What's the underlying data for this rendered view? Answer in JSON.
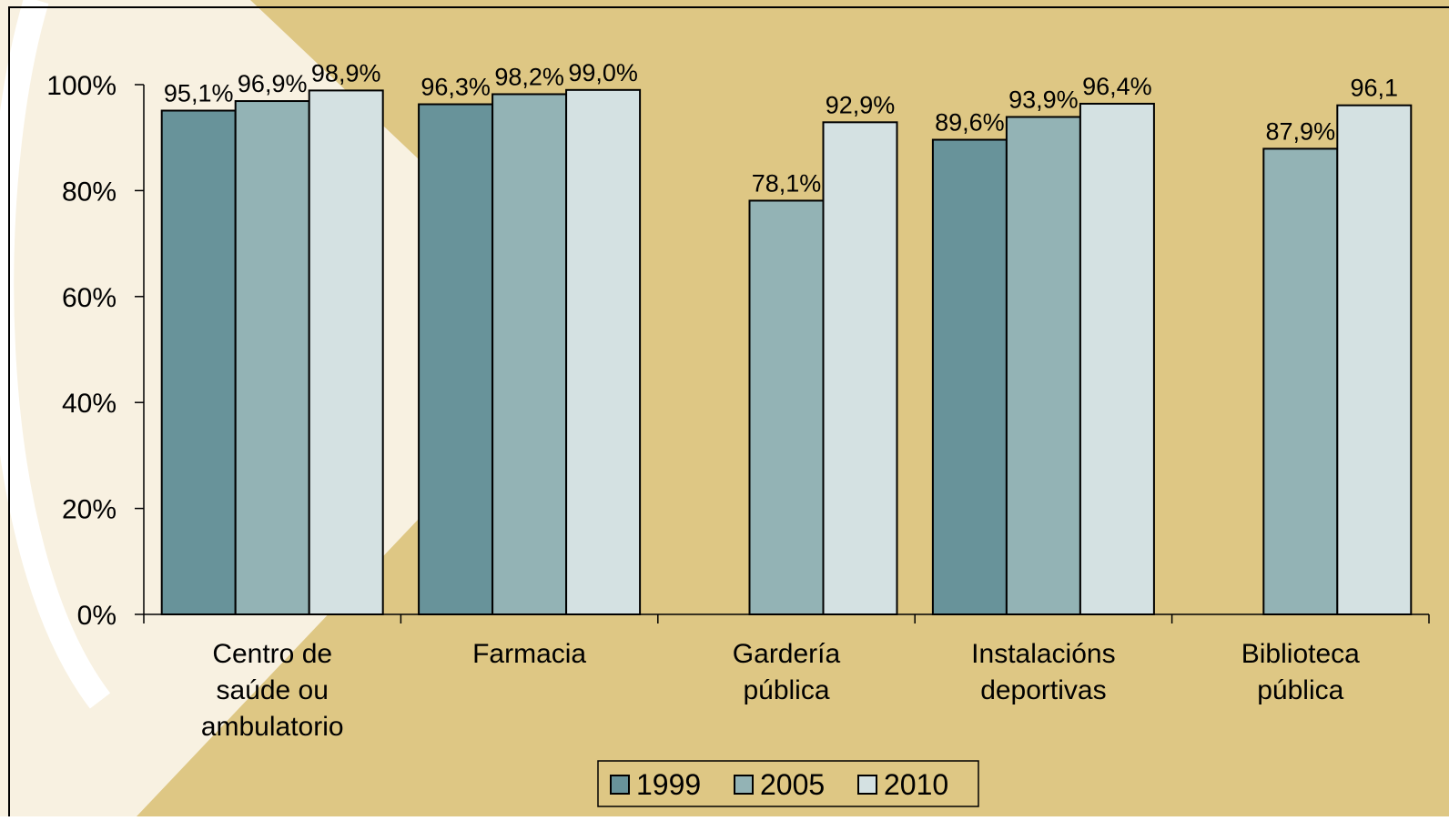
{
  "chart_data": {
    "type": "bar",
    "categories": [
      [
        "Centro de",
        "saúde ou",
        "ambulatorio"
      ],
      [
        "Farmacia"
      ],
      [
        "Gardería",
        "pública"
      ],
      [
        "Instalacións",
        "deportivas"
      ],
      [
        "Biblioteca",
        "pública"
      ]
    ],
    "series": [
      {
        "name": "1999",
        "color": "#68939a",
        "values": [
          95.1,
          96.3,
          null,
          89.6,
          null
        ],
        "value_labels": [
          "95,1%",
          "96,3%",
          null,
          "89,6%",
          null
        ]
      },
      {
        "name": "2005",
        "color": "#93b3b5",
        "values": [
          96.9,
          98.2,
          78.1,
          93.9,
          87.9
        ],
        "value_labels": [
          "96,9%",
          "98,2%",
          "78,1%",
          "93,9%",
          "87,9%"
        ]
      },
      {
        "name": "2010",
        "color": "#d4e1e2",
        "values": [
          98.9,
          99.0,
          92.9,
          96.4,
          96.1
        ],
        "value_labels": [
          "98,9%",
          "99,0%",
          "92,9%",
          "96,4%",
          "96,1"
        ]
      }
    ],
    "ylim": [
      0,
      100
    ],
    "yticks": [
      {
        "value": 0,
        "label": "0%"
      },
      {
        "value": 20,
        "label": "20%"
      },
      {
        "value": 40,
        "label": "40%"
      },
      {
        "value": 60,
        "label": "60%"
      },
      {
        "value": 80,
        "label": "80%"
      },
      {
        "value": 100,
        "label": "100%"
      }
    ],
    "legend": "bottom"
  }
}
